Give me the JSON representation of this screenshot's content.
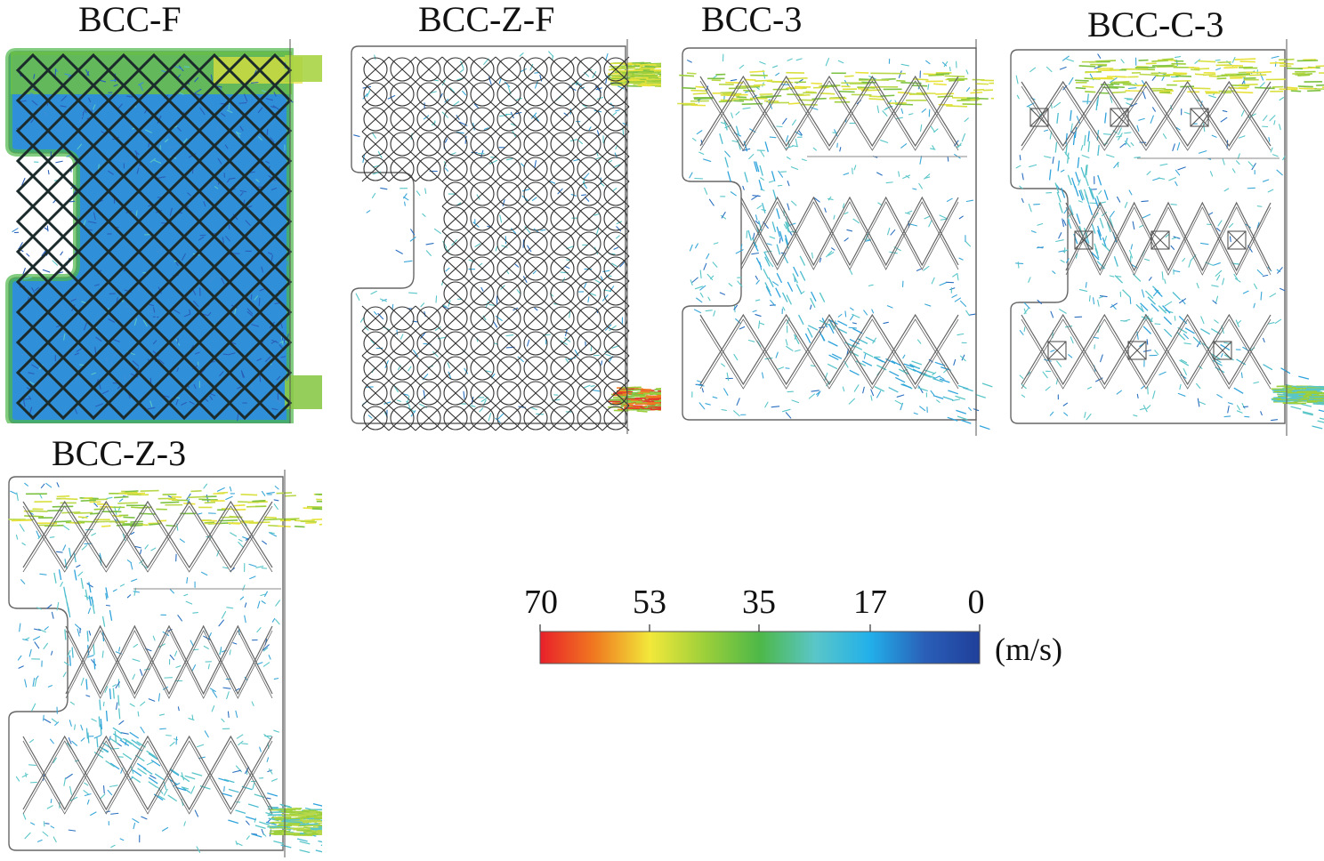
{
  "panels": [
    {
      "id": "p1",
      "title": "BCC-F"
    },
    {
      "id": "p2",
      "title": "BCC-Z-F"
    },
    {
      "id": "p3",
      "title": "BCC-3"
    },
    {
      "id": "p4",
      "title": "BCC-C-3"
    },
    {
      "id": "p5",
      "title": "BCC-Z-3"
    }
  ],
  "colorbar": {
    "ticks": [
      "70",
      "53",
      "35",
      "17",
      "0"
    ],
    "unit": "(m/s)",
    "colors": [
      "#e8202a",
      "#f07a20",
      "#f2e83a",
      "#9ccf3a",
      "#4db848",
      "#5ac6c8",
      "#22b0ea",
      "#2a5fb8",
      "#1f3f9a"
    ]
  }
}
